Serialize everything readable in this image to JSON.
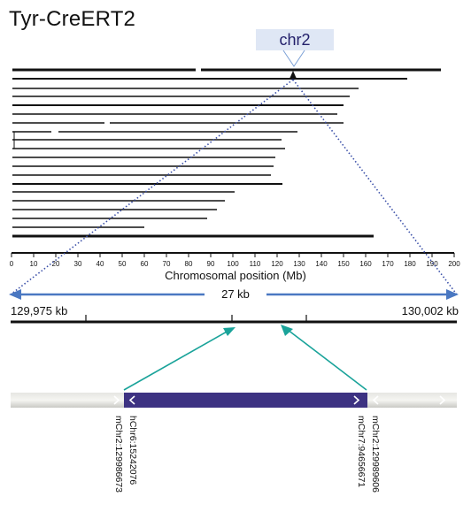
{
  "title": "Tyr-CreERT2",
  "chromosome_label": "chr2",
  "axis": {
    "title": "Chromosomal position (Mb)",
    "ticks": [
      "0",
      "10",
      "20",
      "30",
      "40",
      "50",
      "60",
      "70",
      "80",
      "90",
      "100",
      "110",
      "120",
      "130",
      "140",
      "150",
      "160",
      "170",
      "180",
      "190",
      "200"
    ]
  },
  "zoom": {
    "span_label": "27 kb",
    "start_label": "129,975 kb",
    "end_label": "130,002 kb"
  },
  "junctions": {
    "left_outer": "mChr2:129986673",
    "left_inner": "hChr6:15242076",
    "right_inner": "mChr7:94656671",
    "right_outer": "mChr2:129989606"
  },
  "colors": {
    "chromosome_line": "#111111",
    "dotted_guides": "#3a4fa8",
    "zoom_arrow": "#4a78c2",
    "teal_arrows": "#1aa39a",
    "transgene": "#3d3282",
    "flanking": "#d6d6d2"
  }
}
